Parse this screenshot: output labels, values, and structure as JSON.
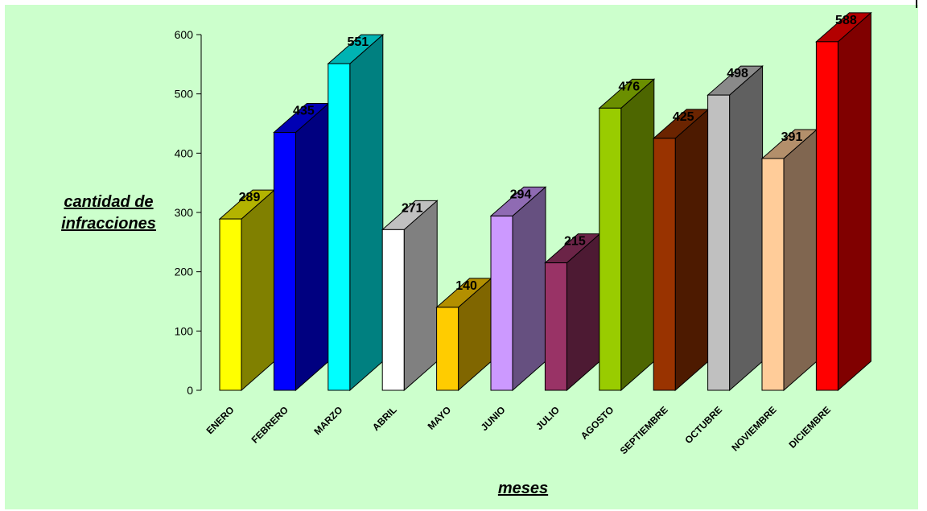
{
  "chart_data": {
    "type": "bar",
    "title": "",
    "xlabel": "meses",
    "ylabel_lines": [
      "cantidad de",
      "infracciones"
    ],
    "ylim": [
      0,
      600
    ],
    "yticks": [
      0,
      100,
      200,
      300,
      400,
      500,
      600
    ],
    "categories": [
      "ENERO",
      "FEBRERO",
      "MARZO",
      "ABRIL",
      "MAYO",
      "JUNIO",
      "JULIO",
      "AGOSTO",
      "SEPTIEMBRE",
      "OCTUBRE",
      "NOVIEMBRE",
      "DICIEMBRE"
    ],
    "values": [
      289,
      435,
      551,
      271,
      140,
      294,
      215,
      476,
      425,
      498,
      391,
      588
    ],
    "colors": [
      "#ffff00",
      "#0000ff",
      "#00ffff",
      "#ffffff",
      "#ffcc00",
      "#cc99ff",
      "#993366",
      "#99cc00",
      "#993300",
      "#c0c0c0",
      "#ffcc99",
      "#ff0000"
    ],
    "side_colors": [
      "#808000",
      "#000080",
      "#008080",
      "#808080",
      "#806600",
      "#665080",
      "#4d1a33",
      "#4d6600",
      "#4d1a00",
      "#606060",
      "#806650",
      "#800000"
    ],
    "top_colors": [
      "#b3b300",
      "#0000b3",
      "#00b3b3",
      "#c0c0c0",
      "#b38f00",
      "#8f6bb3",
      "#6b2447",
      "#6b8f00",
      "#6b2400",
      "#8a8a8a",
      "#b38f6b",
      "#b30000"
    ],
    "background": "#ccffcc",
    "grid": false,
    "legend": "none"
  }
}
